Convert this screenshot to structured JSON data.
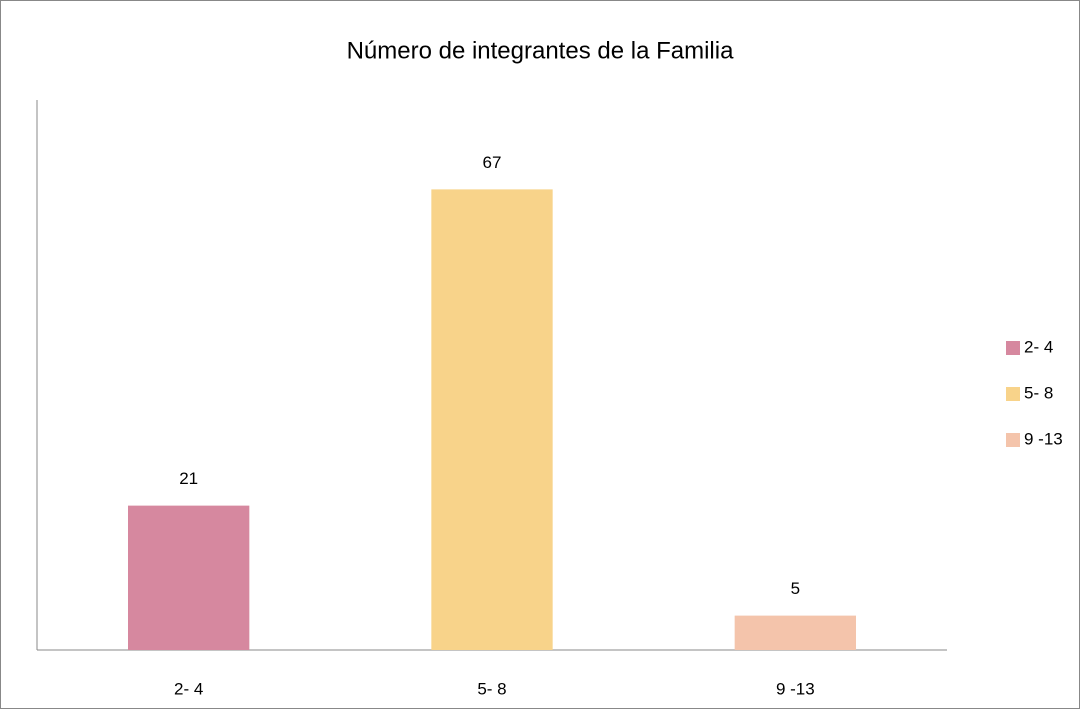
{
  "chart_data": {
    "type": "bar",
    "title": "Número de integrantes de la Familia",
    "categories": [
      "2- 4",
      "5- 8",
      "9 -13"
    ],
    "values": [
      21,
      67,
      5
    ],
    "colors": [
      "#d6889f",
      "#f8d38a",
      "#f4c4ab"
    ],
    "ylim": [
      0,
      80
    ],
    "legend": "right"
  }
}
